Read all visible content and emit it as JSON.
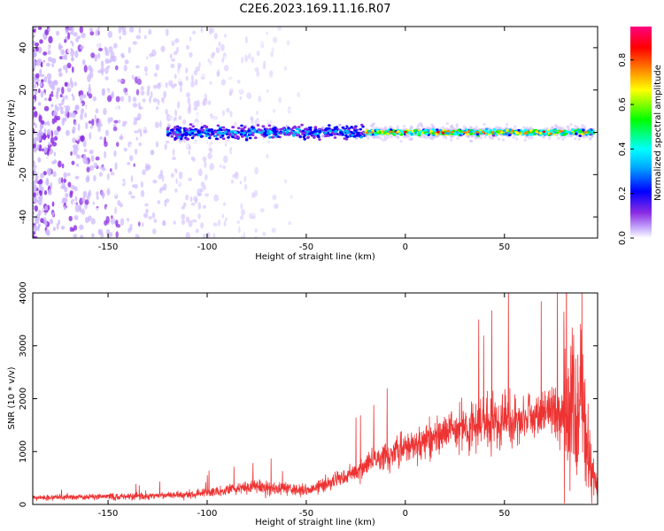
{
  "figure": {
    "title": "C2E6.2023.169.11.16.R07"
  },
  "chart_data": [
    {
      "type": "heatmap",
      "xlabel": "Height of straight line (km)",
      "ylabel": "Frequency (Hz)",
      "xlim": [
        -188,
        97
      ],
      "ylim": [
        -50,
        50
      ],
      "xticks": [
        -150,
        -100,
        -50,
        0,
        50
      ],
      "yticks": [
        -40,
        -20,
        0,
        20,
        40
      ],
      "colorbar": {
        "label": "Normalized spectral amplitude",
        "range": [
          0,
          0.95
        ],
        "ticks": [
          0.0,
          0.2,
          0.4,
          0.6,
          0.8
        ],
        "colormap": [
          "#ffffff",
          "#cdb8ff",
          "#8a2be2",
          "#0000ff",
          "#00b0ff",
          "#00ffff",
          "#00ff00",
          "#ffff00",
          "#ff8000",
          "#ff0000",
          "#ff0080"
        ]
      },
      "band": {
        "center_frequency_hz": 0,
        "segments": [
          {
            "x_from": -120,
            "x_to": -20,
            "half_width_hz": 5,
            "peak_amplitude": 0.45
          },
          {
            "x_from": -20,
            "x_to": 95,
            "half_width_hz": 2,
            "peak_amplitude": 0.85
          }
        ]
      },
      "noise_region": {
        "x_from": -188,
        "x_to": -30,
        "amplitude": 0.1
      }
    },
    {
      "type": "line",
      "xlabel": "Height of straight line (km)",
      "ylabel": "SNR (10 * v/v)",
      "xlim": [
        -188,
        97
      ],
      "ylim": [
        0,
        4000
      ],
      "xticks": [
        -150,
        -100,
        -50,
        0,
        50
      ],
      "yticks": [
        0,
        1000,
        2000,
        3000,
        4000
      ],
      "series": [
        {
          "color": "#ee3333",
          "x": [
            -188,
            -170,
            -150,
            -130,
            -110,
            -100,
            -90,
            -80,
            -75,
            -70,
            -60,
            -50,
            -45,
            -40,
            -35,
            -30,
            -25,
            -20,
            -15,
            -10,
            -5,
            0,
            5,
            10,
            15,
            20,
            25,
            30,
            35,
            40,
            45,
            50,
            55,
            60,
            65,
            70,
            75,
            80,
            82,
            84,
            86,
            88,
            90,
            92,
            94,
            96
          ],
          "y": [
            130,
            140,
            150,
            160,
            180,
            230,
            270,
            330,
            350,
            330,
            290,
            260,
            310,
            370,
            480,
            540,
            600,
            720,
            840,
            920,
            1000,
            1050,
            1120,
            1200,
            1260,
            1330,
            1390,
            1460,
            1510,
            1550,
            1570,
            1600,
            1630,
            1650,
            1690,
            1710,
            1730,
            1760,
            1700,
            1900,
            1600,
            2000,
            1300,
            1100,
            800,
            400
          ]
        }
      ]
    }
  ]
}
